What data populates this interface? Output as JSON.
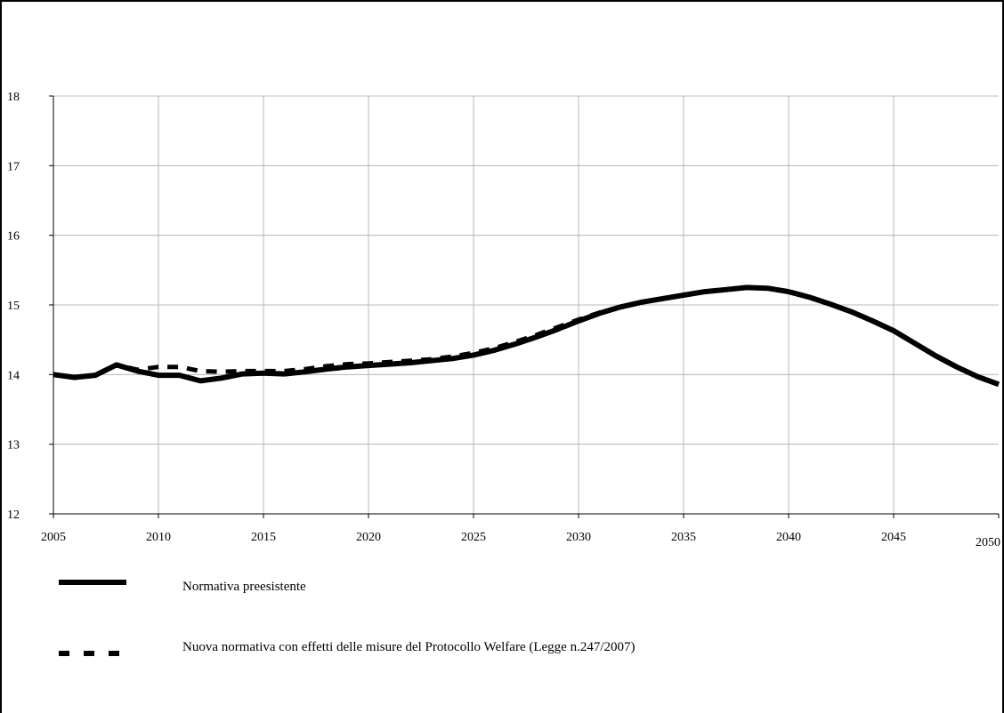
{
  "chart_data": {
    "type": "line",
    "title": "",
    "xlabel": "",
    "ylabel": "",
    "xlim": [
      2005,
      2050
    ],
    "ylim": [
      12,
      18
    ],
    "x_ticks": [
      2005,
      2010,
      2015,
      2020,
      2025,
      2030,
      2035,
      2040,
      2045,
      2050
    ],
    "y_ticks": [
      12,
      13,
      14,
      15,
      16,
      17,
      18
    ],
    "grid": true,
    "legend_position": "bottom",
    "series": [
      {
        "name": "Normativa preesistente",
        "style": "solid",
        "color": "#000000",
        "x": [
          2005,
          2006,
          2007,
          2008,
          2009,
          2010,
          2011,
          2012,
          2013,
          2014,
          2015,
          2016,
          2017,
          2018,
          2019,
          2020,
          2021,
          2022,
          2023,
          2024,
          2025,
          2026,
          2027,
          2028,
          2029,
          2030,
          2031,
          2032,
          2033,
          2034,
          2035,
          2036,
          2037,
          2038,
          2039,
          2040,
          2041,
          2042,
          2043,
          2044,
          2045,
          2046,
          2047,
          2048,
          2049,
          2050
        ],
        "values": [
          14.0,
          13.96,
          13.99,
          14.14,
          14.05,
          13.99,
          13.99,
          13.91,
          13.95,
          14.01,
          14.02,
          14.01,
          14.04,
          14.08,
          14.11,
          14.13,
          14.15,
          14.17,
          14.2,
          14.23,
          14.28,
          14.35,
          14.44,
          14.54,
          14.65,
          14.77,
          14.88,
          14.97,
          15.04,
          15.09,
          15.14,
          15.19,
          15.22,
          15.25,
          15.24,
          15.19,
          15.11,
          15.01,
          14.9,
          14.77,
          14.63,
          14.45,
          14.27,
          14.11,
          13.97,
          13.86
        ]
      },
      {
        "name": "Nuova normativa con effetti delle misure del Protocollo Welfare (Legge n.247/2007)",
        "style": "dashed",
        "color": "#000000",
        "x": [
          2005,
          2006,
          2007,
          2008,
          2009,
          2010,
          2011,
          2012,
          2013,
          2014,
          2015,
          2016,
          2017,
          2018,
          2019,
          2020,
          2021,
          2022,
          2023,
          2024,
          2025,
          2026,
          2027,
          2028,
          2029,
          2030,
          2031,
          2032,
          2033,
          2034,
          2035,
          2036,
          2037,
          2038,
          2039,
          2040,
          2041,
          2042,
          2043,
          2044,
          2045,
          2046,
          2047,
          2048,
          2049,
          2050
        ],
        "values": [
          14.0,
          13.96,
          13.99,
          14.14,
          14.07,
          14.11,
          14.11,
          14.05,
          14.04,
          14.05,
          14.05,
          14.05,
          14.08,
          14.12,
          14.15,
          14.16,
          14.18,
          14.2,
          14.22,
          14.26,
          14.31,
          14.38,
          14.47,
          14.57,
          14.68,
          14.79,
          14.89,
          14.97,
          15.04,
          15.09,
          15.14,
          15.19,
          15.22,
          15.25,
          15.24,
          15.19,
          15.11,
          15.01,
          14.9,
          14.77,
          14.63,
          14.45,
          14.27,
          14.11,
          13.97,
          13.86
        ]
      }
    ]
  }
}
